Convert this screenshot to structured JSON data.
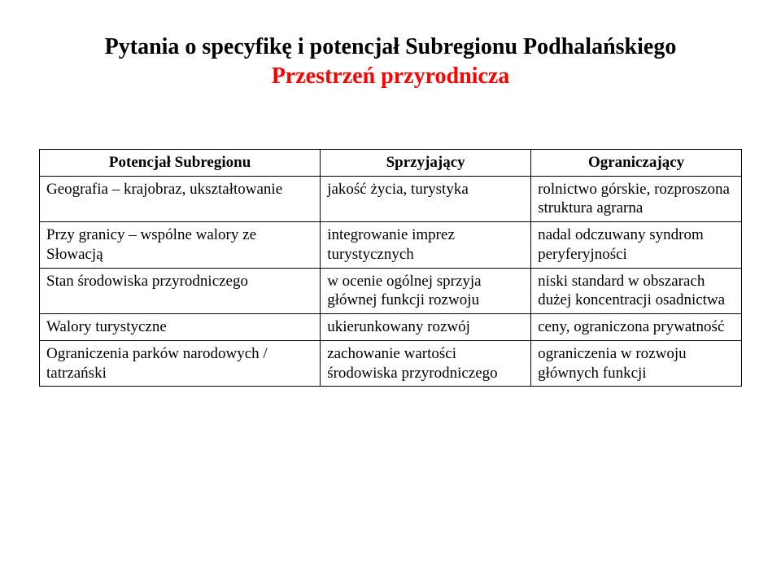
{
  "title": {
    "line1": "Pytania o specyfikę i potencjał Subregionu Podhalańskiego",
    "line2": "Przestrzeń przyrodnicza",
    "line1_color": "#000000",
    "line2_color": "#ff0000",
    "fontsize": 28,
    "fontweight": "bold"
  },
  "table": {
    "type": "table",
    "border_color": "#000000",
    "background_color": "#ffffff",
    "column_widths_pct": [
      40,
      30,
      30
    ],
    "header_fontsize": 19,
    "cell_fontsize": 19,
    "columns": [
      "Potencjał Subregionu",
      "Sprzyjający",
      "Ograniczający"
    ],
    "rows": [
      [
        "Geografia – krajobraz, ukształtowanie",
        "jakość życia, turystyka",
        "rolnictwo górskie, rozproszona struktura agrarna"
      ],
      [
        "Przy granicy – wspólne walory ze Słowacją",
        "integrowanie imprez turystycznych",
        "nadal odczuwany syndrom peryferyjności"
      ],
      [
        "Stan środowiska przyrodniczego",
        "w ocenie ogólnej sprzyja głównej funkcji rozwoju",
        "niski standard w obszarach dużej koncentracji osadnictwa"
      ],
      [
        "Walory turystyczne",
        "ukierunkowany rozwój",
        "ceny, ograniczona prywatność"
      ],
      [
        "Ograniczenia parków narodowych / tatrzański",
        "zachowanie wartości środowiska przyrodniczego",
        "ograniczenia w rozwoju głównych funkcji"
      ]
    ]
  }
}
